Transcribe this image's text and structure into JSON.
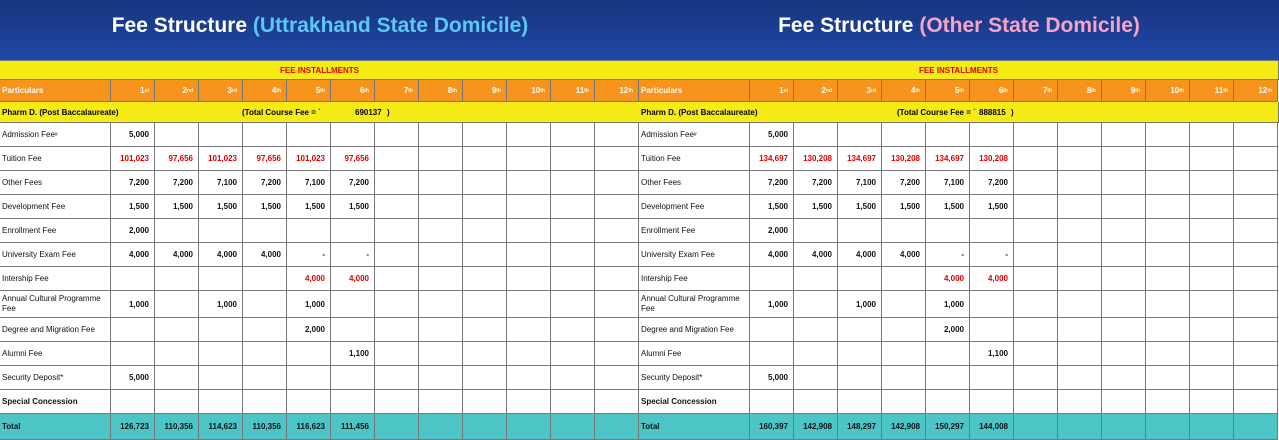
{
  "panels": [
    {
      "title": "Fee Structure",
      "subtitle": "(Uttrakhand State Domicile)",
      "subtitle_color": "#5cc8f2",
      "table": {
        "section": "FEE INSTALLMENTS",
        "particulars": "Particulars",
        "installments": [
          {
            "n": "1",
            "suffix": "st"
          },
          {
            "n": "2",
            "suffix": "nd"
          },
          {
            "n": "3",
            "suffix": "rd"
          },
          {
            "n": "4",
            "suffix": "th"
          },
          {
            "n": "5",
            "suffix": "th"
          },
          {
            "n": "6",
            "suffix": "th"
          },
          {
            "n": "7",
            "suffix": "th"
          },
          {
            "n": "8",
            "suffix": "th"
          },
          {
            "n": "9",
            "suffix": "th"
          },
          {
            "n": "10",
            "suffix": "th"
          },
          {
            "n": "11",
            "suffix": "th"
          },
          {
            "n": "12",
            "suffix": "th"
          }
        ],
        "program": {
          "name": "Pharm D. (Post Baccalaureate)",
          "fee_label": "(Total Course Fee = `",
          "fee": "690137",
          "fee_close": ")"
        },
        "rows": [
          {
            "label": "Admission Fee",
            "note": "#",
            "cells": [
              "5,000",
              null,
              null,
              null,
              null,
              null,
              null,
              null,
              null,
              null,
              null,
              null
            ]
          },
          {
            "label": "Tuition  Fee",
            "cell_color": "#e00000",
            "cells": [
              "101,023",
              "97,656",
              "101,023",
              "97,656",
              "101,023",
              "97,656",
              null,
              null,
              null,
              null,
              null,
              null
            ]
          },
          {
            "label": "Other Fees",
            "cells": [
              "7,200",
              "7,200",
              "7,100",
              "7,200",
              "7,100",
              "7,200",
              null,
              null,
              null,
              null,
              null,
              null
            ]
          },
          {
            "label": "Development Fee",
            "cells": [
              "1,500",
              "1,500",
              "1,500",
              "1,500",
              "1,500",
              "1,500",
              null,
              null,
              null,
              null,
              null,
              null
            ]
          },
          {
            "label": "Enrollment Fee",
            "cells": [
              "2,000",
              null,
              null,
              null,
              null,
              null,
              null,
              null,
              null,
              null,
              null,
              null
            ]
          },
          {
            "label": "University Exam Fee",
            "cells": [
              "4,000",
              "4,000",
              "4,000",
              "4,000",
              "-",
              "-",
              null,
              null,
              null,
              null,
              null,
              null
            ]
          },
          {
            "label": "Intership Fee",
            "cell_color": "#e00000",
            "cells": [
              null,
              null,
              null,
              null,
              "4,000",
              "4,000",
              null,
              null,
              null,
              null,
              null,
              null
            ]
          },
          {
            "label": "Annual Cultural Programme Fee",
            "cells": [
              "1,000",
              null,
              "1,000",
              null,
              "1,000",
              null,
              null,
              null,
              null,
              null,
              null,
              null
            ]
          },
          {
            "label": "Degree and Migration Fee",
            "cells": [
              null,
              null,
              null,
              null,
              "2,000",
              null,
              null,
              null,
              null,
              null,
              null,
              null
            ]
          },
          {
            "label": "Alumni Fee",
            "cells": [
              null,
              null,
              null,
              null,
              null,
              "1,100",
              null,
              null,
              null,
              null,
              null,
              null
            ]
          },
          {
            "label": "Security Deposit*",
            "cells": [
              "5,000",
              null,
              null,
              null,
              null,
              null,
              null,
              null,
              null,
              null,
              null,
              null
            ]
          },
          {
            "label": "Special Concession",
            "bold": true,
            "cells": [
              null,
              null,
              null,
              null,
              null,
              null,
              null,
              null,
              null,
              null,
              null,
              null
            ]
          }
        ],
        "total": {
          "label": "Total",
          "cells": [
            "126,723",
            "110,356",
            "114,623",
            "110,356",
            "116,623",
            "111,456",
            null,
            null,
            null,
            null,
            null,
            null
          ]
        }
      }
    },
    {
      "title": "Fee Structure",
      "subtitle": "(Other State Domicile)",
      "subtitle_color": "#f7a3c6",
      "table": {
        "section": "FEE INSTALLMENTS",
        "particulars": "Particulars",
        "installments": [
          {
            "n": "1",
            "suffix": "st"
          },
          {
            "n": "2",
            "suffix": "nd"
          },
          {
            "n": "3",
            "suffix": "rd"
          },
          {
            "n": "4",
            "suffix": "th"
          },
          {
            "n": "5",
            "suffix": "th"
          },
          {
            "n": "6",
            "suffix": "th"
          },
          {
            "n": "7",
            "suffix": "th"
          },
          {
            "n": "8",
            "suffix": "th"
          },
          {
            "n": "9",
            "suffix": "th"
          },
          {
            "n": "10",
            "suffix": "th"
          },
          {
            "n": "11",
            "suffix": "th"
          },
          {
            "n": "12",
            "suffix": "th"
          }
        ],
        "program": {
          "name": "Pharm D. (Post Baccalaureate)",
          "fee_label": "(Total Course Fee = `",
          "fee": "888815",
          "fee_close": ")"
        },
        "rows": [
          {
            "label": "Admission Fee",
            "note": "#",
            "cells": [
              "5,000",
              null,
              null,
              null,
              null,
              null,
              null,
              null,
              null,
              null,
              null,
              null
            ]
          },
          {
            "label": "Tuition  Fee",
            "cell_color": "#e00000",
            "cells": [
              "134,697",
              "130,208",
              "134,697",
              "130,208",
              "134,697",
              "130,208",
              null,
              null,
              null,
              null,
              null,
              null
            ]
          },
          {
            "label": "Other Fees",
            "cells": [
              "7,200",
              "7,200",
              "7,100",
              "7,200",
              "7,100",
              "7,200",
              null,
              null,
              null,
              null,
              null,
              null
            ]
          },
          {
            "label": "Development Fee",
            "cells": [
              "1,500",
              "1,500",
              "1,500",
              "1,500",
              "1,500",
              "1,500",
              null,
              null,
              null,
              null,
              null,
              null
            ]
          },
          {
            "label": "Enrollment Fee",
            "cells": [
              "2,000",
              null,
              null,
              null,
              null,
              null,
              null,
              null,
              null,
              null,
              null,
              null
            ]
          },
          {
            "label": "University Exam Fee",
            "cells": [
              "4,000",
              "4,000",
              "4,000",
              "4,000",
              "-",
              "-",
              null,
              null,
              null,
              null,
              null,
              null
            ]
          },
          {
            "label": "Intership Fee",
            "cell_color": "#e00000",
            "cells": [
              null,
              null,
              null,
              null,
              "4,000",
              "4,000",
              null,
              null,
              null,
              null,
              null,
              null
            ]
          },
          {
            "label": "Annual Cultural Programme Fee",
            "cells": [
              "1,000",
              null,
              "1,000",
              null,
              "1,000",
              null,
              null,
              null,
              null,
              null,
              null,
              null
            ]
          },
          {
            "label": "Degree and Migration Fee",
            "cells": [
              null,
              null,
              null,
              null,
              "2,000",
              null,
              null,
              null,
              null,
              null,
              null,
              null
            ]
          },
          {
            "label": "Alumni Fee",
            "cells": [
              null,
              null,
              null,
              null,
              null,
              "1,100",
              null,
              null,
              null,
              null,
              null,
              null
            ]
          },
          {
            "label": "Security Deposit*",
            "cells": [
              "5,000",
              null,
              null,
              null,
              null,
              null,
              null,
              null,
              null,
              null,
              null,
              null
            ]
          },
          {
            "label": "Special Concession",
            "bold": true,
            "cells": [
              null,
              null,
              null,
              null,
              null,
              null,
              null,
              null,
              null,
              null,
              null,
              null
            ]
          }
        ],
        "total": {
          "label": "Total",
          "cells": [
            "160,397",
            "142,908",
            "148,297",
            "142,908",
            "150,297",
            "144,008",
            null,
            null,
            null,
            null,
            null,
            null
          ]
        }
      }
    }
  ]
}
